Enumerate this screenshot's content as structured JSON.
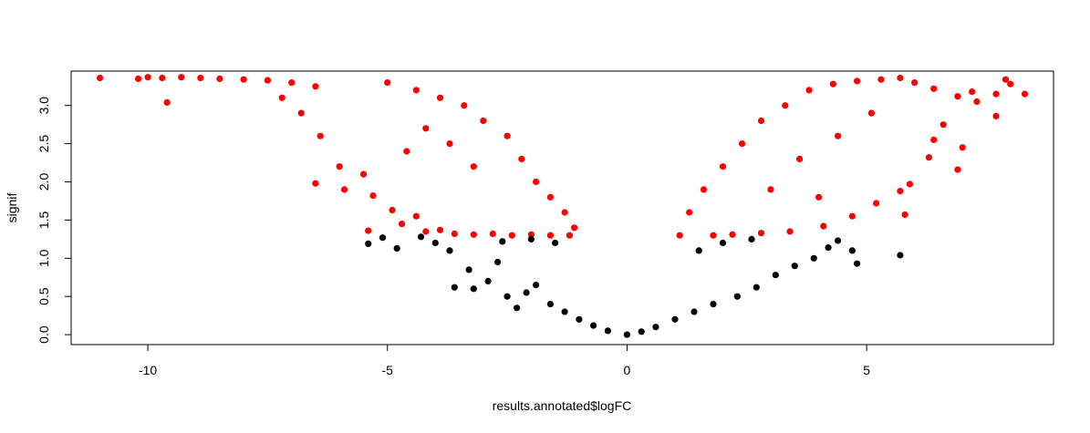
{
  "chart_data": {
    "type": "scatter",
    "title": "",
    "xlabel": "results.annotated$logFC",
    "ylabel": "signif",
    "xlim": [
      -11.6,
      8.9
    ],
    "ylim": [
      -0.13,
      3.45
    ],
    "xticks": [
      -10,
      -5,
      0,
      5
    ],
    "xtick_labels": [
      "-10",
      "-5",
      "0",
      "5"
    ],
    "yticks": [
      0.0,
      0.5,
      1.0,
      1.5,
      2.0,
      2.5,
      3.0
    ],
    "ytick_labels": [
      "0.0",
      "0.5",
      "1.0",
      "1.5",
      "2.0",
      "2.5",
      "3.0"
    ],
    "grid": false,
    "legend": "none",
    "significance_threshold": 1.3,
    "colors": {
      "significant": "#ff0000",
      "not_significant": "#000000"
    },
    "series": [
      {
        "color": "#ff0000",
        "points": [
          [
            -11.0,
            3.36
          ],
          [
            -10.2,
            3.35
          ],
          [
            -10.0,
            3.37
          ],
          [
            -9.7,
            3.36
          ],
          [
            -9.6,
            3.04
          ],
          [
            -9.3,
            3.37
          ],
          [
            -8.9,
            3.36
          ],
          [
            -8.5,
            3.35
          ],
          [
            -8.0,
            3.34
          ],
          [
            -7.5,
            3.33
          ],
          [
            -7.0,
            3.3
          ],
          [
            -6.5,
            3.25
          ],
          [
            -7.2,
            3.1
          ],
          [
            -6.8,
            2.9
          ],
          [
            -6.4,
            2.6
          ],
          [
            -6.5,
            1.98
          ],
          [
            -6.0,
            2.2
          ],
          [
            -5.9,
            1.9
          ],
          [
            -5.5,
            2.1
          ],
          [
            -5.3,
            1.82
          ],
          [
            -4.9,
            1.63
          ],
          [
            -4.7,
            1.45
          ],
          [
            -4.4,
            1.55
          ],
          [
            -5.4,
            1.36
          ],
          [
            -4.2,
            1.35
          ],
          [
            -3.9,
            1.37
          ],
          [
            -3.6,
            1.32
          ],
          [
            -3.2,
            1.31
          ],
          [
            -2.8,
            1.32
          ],
          [
            -2.4,
            1.3
          ],
          [
            -2.0,
            1.31
          ],
          [
            -1.6,
            1.3
          ],
          [
            -1.2,
            1.3
          ],
          [
            -1.1,
            1.4
          ],
          [
            -1.3,
            1.6
          ],
          [
            -1.6,
            1.8
          ],
          [
            -1.9,
            2.0
          ],
          [
            -2.2,
            2.3
          ],
          [
            -2.5,
            2.6
          ],
          [
            -3.0,
            2.8
          ],
          [
            -3.4,
            3.0
          ],
          [
            -3.9,
            3.1
          ],
          [
            -4.4,
            3.2
          ],
          [
            -5.0,
            3.3
          ],
          [
            -3.2,
            2.2
          ],
          [
            -3.7,
            2.5
          ],
          [
            -4.2,
            2.7
          ],
          [
            -4.6,
            2.4
          ],
          [
            1.1,
            1.3
          ],
          [
            1.3,
            1.6
          ],
          [
            1.6,
            1.9
          ],
          [
            2.0,
            2.2
          ],
          [
            2.4,
            2.5
          ],
          [
            2.8,
            2.8
          ],
          [
            3.3,
            3.0
          ],
          [
            3.8,
            3.2
          ],
          [
            4.3,
            3.28
          ],
          [
            4.8,
            3.32
          ],
          [
            5.3,
            3.34
          ],
          [
            5.7,
            3.36
          ],
          [
            6.0,
            3.3
          ],
          [
            6.4,
            3.22
          ],
          [
            6.9,
            3.12
          ],
          [
            7.3,
            3.05
          ],
          [
            7.7,
            3.15
          ],
          [
            7.9,
            3.34
          ],
          [
            8.0,
            3.28
          ],
          [
            8.3,
            3.15
          ],
          [
            7.7,
            2.86
          ],
          [
            7.2,
            3.18
          ],
          [
            6.9,
            2.16
          ],
          [
            6.3,
            2.32
          ],
          [
            5.9,
            1.97
          ],
          [
            5.7,
            1.88
          ],
          [
            5.8,
            1.57
          ],
          [
            6.6,
            2.75
          ],
          [
            7.0,
            2.45
          ],
          [
            6.4,
            2.55
          ],
          [
            5.2,
            1.72
          ],
          [
            4.7,
            1.55
          ],
          [
            4.1,
            1.42
          ],
          [
            3.4,
            1.35
          ],
          [
            2.8,
            1.33
          ],
          [
            2.2,
            1.31
          ],
          [
            1.8,
            1.3
          ],
          [
            3.0,
            1.9
          ],
          [
            3.6,
            2.3
          ],
          [
            4.4,
            2.6
          ],
          [
            5.1,
            2.9
          ],
          [
            4.0,
            1.8
          ]
        ]
      },
      {
        "color": "#000000",
        "points": [
          [
            -5.4,
            1.19
          ],
          [
            -5.1,
            1.27
          ],
          [
            -4.8,
            1.13
          ],
          [
            -4.3,
            1.28
          ],
          [
            -4.0,
            1.2
          ],
          [
            -3.7,
            1.1
          ],
          [
            -3.6,
            0.62
          ],
          [
            -3.3,
            0.85
          ],
          [
            -3.2,
            0.6
          ],
          [
            -2.9,
            0.7
          ],
          [
            -2.7,
            0.95
          ],
          [
            -2.5,
            0.5
          ],
          [
            -2.3,
            0.35
          ],
          [
            -2.1,
            0.55
          ],
          [
            -1.9,
            0.65
          ],
          [
            -1.6,
            0.4
          ],
          [
            -1.3,
            0.3
          ],
          [
            -1.0,
            0.2
          ],
          [
            -0.7,
            0.12
          ],
          [
            -0.4,
            0.05
          ],
          [
            0.0,
            0.0
          ],
          [
            0.3,
            0.04
          ],
          [
            0.6,
            0.1
          ],
          [
            1.0,
            0.2
          ],
          [
            1.4,
            0.3
          ],
          [
            1.8,
            0.4
          ],
          [
            2.3,
            0.5
          ],
          [
            2.7,
            0.62
          ],
          [
            3.1,
            0.78
          ],
          [
            3.5,
            0.9
          ],
          [
            3.9,
            1.0
          ],
          [
            4.2,
            1.14
          ],
          [
            4.4,
            1.23
          ],
          [
            4.7,
            1.1
          ],
          [
            4.8,
            0.93
          ],
          [
            5.7,
            1.04
          ],
          [
            2.6,
            1.25
          ],
          [
            2.0,
            1.2
          ],
          [
            1.5,
            1.1
          ],
          [
            -1.5,
            1.2
          ],
          [
            -2.0,
            1.25
          ],
          [
            -2.6,
            1.22
          ]
        ]
      }
    ]
  }
}
